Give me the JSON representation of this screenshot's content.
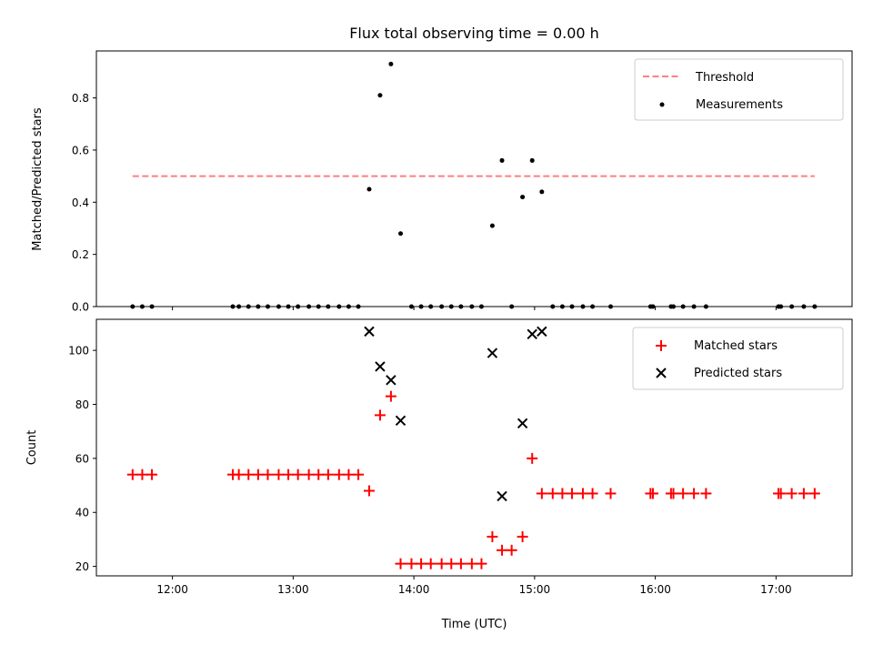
{
  "chart_data": [
    {
      "type": "scatter",
      "title": "Flux total observing time = 0.00 h",
      "xlabel": "",
      "ylabel": "Matched/Predicted stars",
      "xlim": [
        11.37,
        17.63
      ],
      "ylim": [
        0,
        0.98
      ],
      "yticks": [
        0.0,
        0.2,
        0.4,
        0.6,
        0.8
      ],
      "ytick_labels": [
        "0.0",
        "0.2",
        "0.4",
        "0.6",
        "0.8"
      ],
      "threshold": {
        "name": "Threshold",
        "value": 0.5,
        "x": [
          11.67,
          17.32
        ],
        "color": "#ff7f7f"
      },
      "series": [
        {
          "name": "Measurements",
          "color": "#000000",
          "marker": "dot",
          "x": [
            11.67,
            11.75,
            11.83,
            12.5,
            12.55,
            12.63,
            12.71,
            12.79,
            12.88,
            12.96,
            13.04,
            13.13,
            13.21,
            13.29,
            13.38,
            13.46,
            13.54,
            13.63,
            13.72,
            13.81,
            13.89,
            13.98,
            14.06,
            14.14,
            14.23,
            14.31,
            14.39,
            14.48,
            14.56,
            14.65,
            14.73,
            14.81,
            14.9,
            14.98,
            15.06,
            15.15,
            15.23,
            15.31,
            15.4,
            15.48,
            15.63,
            15.96,
            15.98,
            16.13,
            16.15,
            16.23,
            16.32,
            16.42,
            17.02,
            17.04,
            17.13,
            17.23,
            17.32
          ],
          "y": [
            0,
            0,
            0,
            0,
            0,
            0,
            0,
            0,
            0,
            0,
            0,
            0,
            0,
            0,
            0,
            0,
            0,
            0.45,
            0.81,
            0.93,
            0.28,
            0,
            0,
            0,
            0,
            0,
            0,
            0,
            0,
            0.31,
            0.56,
            0,
            0.42,
            0.56,
            0.44,
            0,
            0,
            0,
            0,
            0,
            0,
            0,
            0,
            0,
            0,
            0,
            0,
            0,
            0,
            0,
            0,
            0,
            0
          ]
        }
      ],
      "legend": {
        "location": "upper right",
        "entries": [
          "Threshold",
          "Measurements"
        ]
      }
    },
    {
      "type": "scatter",
      "title": "",
      "xlabel": "Time (UTC)",
      "ylabel": "Count",
      "xlim": [
        11.37,
        17.63
      ],
      "ylim": [
        16.5,
        111.5
      ],
      "xticks": [
        12,
        13,
        14,
        15,
        16,
        17
      ],
      "xtick_labels": [
        "12:00",
        "13:00",
        "14:00",
        "15:00",
        "16:00",
        "17:00"
      ],
      "yticks": [
        20,
        40,
        60,
        80,
        100
      ],
      "ytick_labels": [
        "20",
        "40",
        "60",
        "80",
        "100"
      ],
      "series": [
        {
          "name": "Matched stars",
          "color": "#ff0000",
          "marker": "plus",
          "x": [
            11.67,
            11.75,
            11.83,
            12.5,
            12.55,
            12.63,
            12.71,
            12.79,
            12.88,
            12.96,
            13.04,
            13.13,
            13.21,
            13.29,
            13.38,
            13.46,
            13.54,
            13.63,
            13.72,
            13.81,
            13.89,
            13.98,
            14.06,
            14.14,
            14.23,
            14.31,
            14.39,
            14.48,
            14.56,
            14.65,
            14.73,
            14.81,
            14.9,
            14.98,
            15.06,
            15.15,
            15.23,
            15.31,
            15.4,
            15.48,
            15.63,
            15.96,
            15.98,
            16.13,
            16.15,
            16.23,
            16.32,
            16.42,
            17.02,
            17.04,
            17.13,
            17.23,
            17.32
          ],
          "y": [
            54,
            54,
            54,
            54,
            54,
            54,
            54,
            54,
            54,
            54,
            54,
            54,
            54,
            54,
            54,
            54,
            54,
            48,
            76,
            83,
            21,
            21,
            21,
            21,
            21,
            21,
            21,
            21,
            21,
            31,
            26,
            26,
            31,
            60,
            47,
            47,
            47,
            47,
            47,
            47,
            47,
            47,
            47,
            47,
            47,
            47,
            47,
            47,
            47,
            47,
            47,
            47,
            47
          ]
        },
        {
          "name": "Predicted stars",
          "color": "#000000",
          "marker": "x",
          "x": [
            13.63,
            13.72,
            13.81,
            13.89,
            14.65,
            14.73,
            14.9,
            14.98,
            15.06
          ],
          "y": [
            107,
            94,
            89,
            74,
            99,
            46,
            73,
            106,
            107
          ]
        }
      ],
      "legend": {
        "location": "upper right",
        "entries": [
          "Matched stars",
          "Predicted stars"
        ]
      }
    }
  ]
}
